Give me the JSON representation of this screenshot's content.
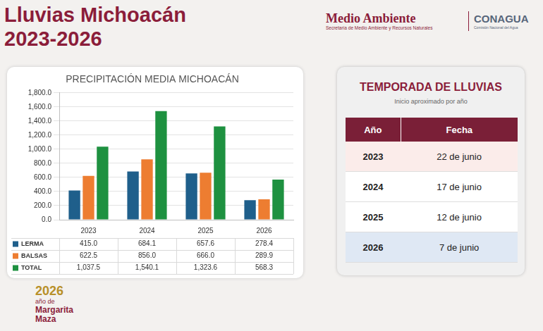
{
  "header": {
    "title": [
      "Lluvias Michoacán",
      "2023-2026"
    ],
    "logos": [
      {
        "name": "Medio Ambiente",
        "subtitle": "Secretaría de Medio Ambiente y Recursos Naturales"
      },
      {
        "name": "CONAGUA",
        "subtitle": "Comisión Nacional del Agua"
      }
    ]
  },
  "chart_data": {
    "type": "bar",
    "title": "PRECIPITACIÓN MEDIA MICHOACÁN",
    "categories": [
      "2023",
      "2024",
      "2025",
      "2026"
    ],
    "series": [
      {
        "name": "LERMA",
        "color": "#1f5f8b",
        "values": [
          415.0,
          684.1,
          657.6,
          278.4
        ],
        "value_labels": [
          "415.0",
          "684.1",
          "657.6",
          "278.4"
        ]
      },
      {
        "name": "BALSAS",
        "color": "#ed7d31",
        "values": [
          622.5,
          856.0,
          666.0,
          289.9
        ],
        "value_labels": [
          "622.5",
          "856.0",
          "666.0",
          "289.9"
        ]
      },
      {
        "name": "TOTAL",
        "color": "#1e9140",
        "values": [
          1037.5,
          1540.1,
          1323.6,
          568.3
        ],
        "value_labels": [
          "1,037.5",
          "1,540.1",
          "1,323.6",
          "568.3"
        ]
      }
    ],
    "ylim": [
      0,
      1800
    ],
    "yticks": [
      {
        "value": 0,
        "label": "0.0"
      },
      {
        "value": 200,
        "label": "200.0"
      },
      {
        "value": 400,
        "label": "400.0"
      },
      {
        "value": 600,
        "label": "600.0"
      },
      {
        "value": 800,
        "label": "800.0"
      },
      {
        "value": 1000,
        "label": "1,000.0"
      },
      {
        "value": 1200,
        "label": "1,200.0"
      },
      {
        "value": 1400,
        "label": "1,400.0"
      },
      {
        "value": 1600,
        "label": "1,600.0"
      },
      {
        "value": 1800,
        "label": "1,800.0"
      }
    ],
    "grid": true
  },
  "side_table": {
    "title": "TEMPORADA DE LLUVIAS",
    "subtitle": "Inicio aproximado por año",
    "columns": [
      "Año",
      "Fecha"
    ],
    "rows": [
      [
        "2023",
        "22 de junio"
      ],
      [
        "2024",
        "17 de junio"
      ],
      [
        "2025",
        "12 de junio"
      ],
      [
        "2026",
        "7 de junio"
      ]
    ]
  },
  "footer": {
    "year": "2026",
    "lines": [
      "año de",
      "Margarita",
      "Maza"
    ]
  }
}
